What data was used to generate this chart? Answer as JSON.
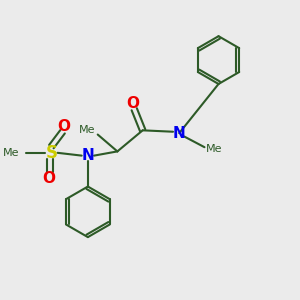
{
  "bg_color": "#ebebeb",
  "bond_color": "#2d5a27",
  "N_color": "#0000ee",
  "O_color": "#ee0000",
  "S_color": "#cccc00",
  "line_width": 1.5,
  "font_size": 9,
  "figsize": [
    3.0,
    3.0
  ],
  "dpi": 100,
  "xlim": [
    0,
    10
  ],
  "ylim": [
    0,
    10
  ]
}
